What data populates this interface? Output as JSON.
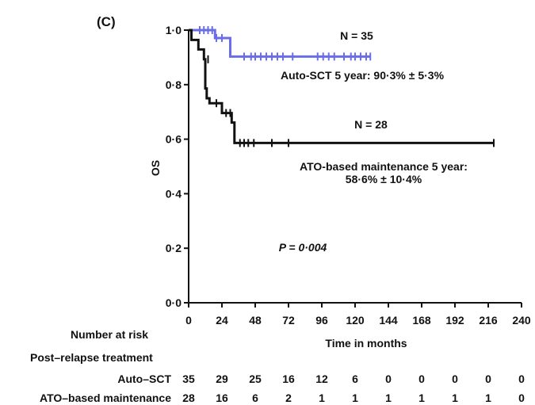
{
  "chart_data": {
    "type": "line",
    "panel_label": "(C)",
    "ylabel": "OS",
    "xlabel": "Time in months",
    "xlim": [
      0,
      240
    ],
    "ylim": [
      0,
      1
    ],
    "x_ticks": [
      0,
      24,
      48,
      72,
      96,
      120,
      144,
      168,
      192,
      216,
      240
    ],
    "y_ticks": [
      {
        "value": 0.0,
        "label": "0·0"
      },
      {
        "value": 0.2,
        "label": "0·2"
      },
      {
        "value": 0.4,
        "label": "0·4"
      },
      {
        "value": 0.6,
        "label": "0·6"
      },
      {
        "value": 0.8,
        "label": "0·8"
      },
      {
        "value": 1.0,
        "label": "1·0"
      }
    ],
    "grid": false,
    "series": [
      {
        "name": "Auto-SCT",
        "color": "#6a6ee6",
        "n_label": "N = 35",
        "summary_lines": [
          "Auto-SCT 5 year: 90·3% ± 5·3%"
        ],
        "steps": [
          [
            0,
            1.0
          ],
          [
            19,
            1.0
          ],
          [
            19,
            0.971
          ],
          [
            30,
            0.971
          ],
          [
            30,
            0.903
          ],
          [
            131,
            0.903
          ]
        ],
        "censors": [
          [
            8,
            1.0
          ],
          [
            11,
            1.0
          ],
          [
            14,
            1.0
          ],
          [
            17,
            1.0
          ],
          [
            20,
            0.971
          ],
          [
            24,
            0.971
          ],
          [
            40,
            0.903
          ],
          [
            45,
            0.903
          ],
          [
            48,
            0.903
          ],
          [
            52,
            0.903
          ],
          [
            56,
            0.903
          ],
          [
            60,
            0.903
          ],
          [
            64,
            0.903
          ],
          [
            68,
            0.903
          ],
          [
            75,
            0.903
          ],
          [
            93,
            0.903
          ],
          [
            97,
            0.903
          ],
          [
            101,
            0.903
          ],
          [
            105,
            0.903
          ],
          [
            112,
            0.903
          ],
          [
            117,
            0.903
          ],
          [
            120,
            0.903
          ],
          [
            124,
            0.903
          ],
          [
            128,
            0.903
          ],
          [
            131,
            0.903
          ]
        ]
      },
      {
        "name": "ATO-based maintenance",
        "color": "#111111",
        "n_label": "N = 28",
        "summary_lines": [
          "ATO-based maintenance 5 year:",
          "58·6% ± 10·4%"
        ],
        "steps": [
          [
            0,
            1.0
          ],
          [
            2,
            1.0
          ],
          [
            2,
            0.964
          ],
          [
            7,
            0.964
          ],
          [
            7,
            0.929
          ],
          [
            11,
            0.929
          ],
          [
            11,
            0.893
          ],
          [
            12,
            0.893
          ],
          [
            12,
            0.786
          ],
          [
            13,
            0.786
          ],
          [
            13,
            0.75
          ],
          [
            15,
            0.75
          ],
          [
            15,
            0.732
          ],
          [
            24,
            0.732
          ],
          [
            24,
            0.696
          ],
          [
            31,
            0.696
          ],
          [
            31,
            0.661
          ],
          [
            33,
            0.661
          ],
          [
            33,
            0.586
          ],
          [
            220,
            0.586
          ]
        ],
        "censors": [
          [
            14,
            0.893
          ],
          [
            20,
            0.732
          ],
          [
            27,
            0.696
          ],
          [
            30,
            0.696
          ],
          [
            37,
            0.586
          ],
          [
            40,
            0.586
          ],
          [
            43,
            0.586
          ],
          [
            47,
            0.586
          ],
          [
            60,
            0.586
          ],
          [
            72,
            0.586
          ],
          [
            220,
            0.586
          ]
        ]
      }
    ],
    "annotations": [
      "P = 0·004"
    ],
    "risk_table": {
      "title": "Number at risk",
      "subtitle": "Post–relapse treatment",
      "rows": [
        {
          "label": "Auto–SCT",
          "values": [
            "35",
            "29",
            "25",
            "16",
            "12",
            "6",
            "0",
            "0",
            "0",
            "0",
            "0"
          ]
        },
        {
          "label": "ATO–based maintenance",
          "values": [
            "28",
            "16",
            "6",
            "2",
            "1",
            "1",
            "1",
            "1",
            "1",
            "1",
            "0"
          ]
        }
      ]
    }
  }
}
